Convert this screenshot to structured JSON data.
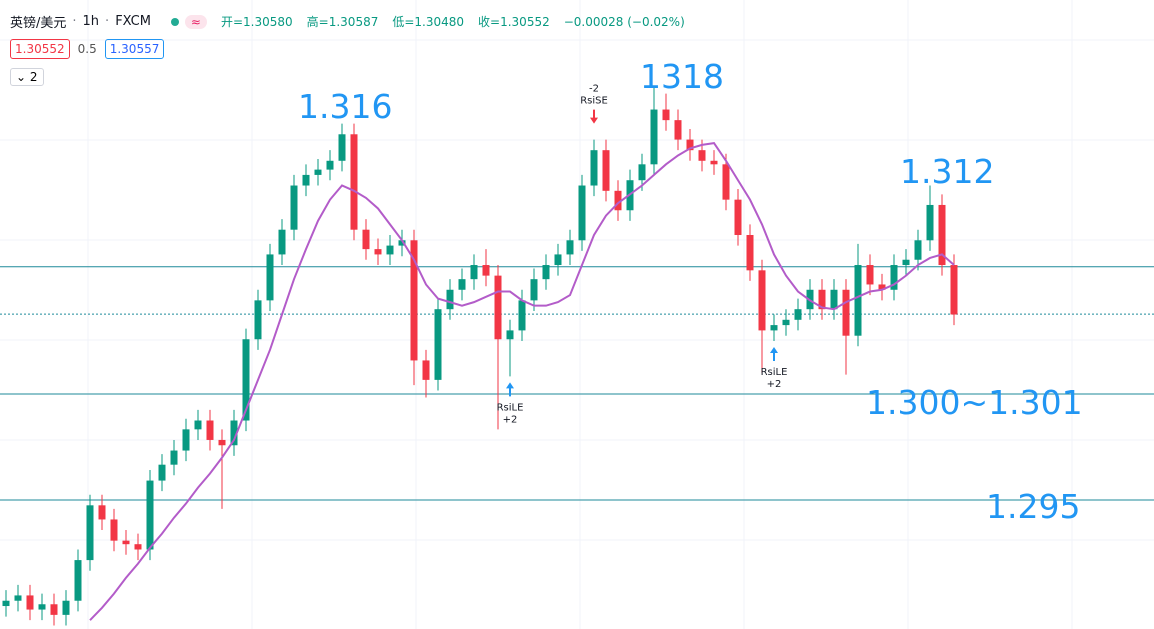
{
  "header": {
    "symbol": "英镑/美元",
    "interval": "1h",
    "source": "FXCM",
    "ohlc": [
      "开=1.30580",
      "高=1.30587",
      "低=1.30480",
      "收=1.30552"
    ],
    "change": "−0.00028 (−0.02%)",
    "sell": "1.30552",
    "spread": "0.5",
    "buy": "1.30557",
    "indicators": "2"
  },
  "chart_data": {
    "type": "candlestick",
    "up_color": "#089981",
    "down_color": "#f23645",
    "ylim": [
      1.2877,
      1.3233
    ],
    "open": [
      1.289,
      1.2893,
      1.2896,
      1.2888,
      1.2891,
      1.2885,
      1.2893,
      1.2916,
      1.2947,
      1.2939,
      1.2927,
      1.2925,
      1.2922,
      1.2961,
      1.297,
      1.2978,
      1.299,
      1.2995,
      1.2984,
      1.2981,
      1.2995,
      1.3041,
      1.3063,
      1.3089,
      1.3103,
      1.3128,
      1.3134,
      1.3137,
      1.3142,
      1.3157,
      1.3103,
      1.3092,
      1.3089,
      1.3094,
      1.3097,
      1.3029,
      1.3018,
      1.3058,
      1.3069,
      1.3075,
      1.3083,
      1.3077,
      1.3041,
      1.3046,
      1.3063,
      1.3075,
      1.3083,
      1.3089,
      1.3097,
      1.3128,
      1.3148,
      1.3125,
      1.3114,
      1.3131,
      1.314,
      1.3171,
      1.3165,
      1.3154,
      1.3148,
      1.3142,
      1.314,
      1.312,
      1.31,
      1.308,
      1.3046,
      1.3049,
      1.3052,
      1.3058,
      1.3069,
      1.3058,
      1.3069,
      1.3043,
      1.3083,
      1.3072,
      1.3069,
      1.3083,
      1.3086,
      1.3097,
      1.3117,
      1.3083
    ],
    "high": [
      1.2899,
      1.2902,
      1.2902,
      1.2897,
      1.2897,
      1.2899,
      1.2922,
      1.2953,
      1.2953,
      1.2945,
      1.2933,
      1.2931,
      1.2967,
      1.2976,
      1.2984,
      1.2996,
      1.3001,
      1.3001,
      1.299,
      1.3001,
      1.3047,
      1.3069,
      1.3095,
      1.3109,
      1.3134,
      1.314,
      1.3143,
      1.3148,
      1.3163,
      1.3163,
      1.3109,
      1.3098,
      1.31,
      1.3103,
      1.3103,
      1.3035,
      1.3064,
      1.3075,
      1.3081,
      1.3089,
      1.3092,
      1.3083,
      1.3052,
      1.3069,
      1.3081,
      1.3089,
      1.3095,
      1.3103,
      1.3134,
      1.3154,
      1.3154,
      1.3131,
      1.3137,
      1.3146,
      1.3184,
      1.318,
      1.3171,
      1.316,
      1.3154,
      1.3148,
      1.3146,
      1.3126,
      1.3106,
      1.3086,
      1.3055,
      1.3058,
      1.3064,
      1.3075,
      1.3075,
      1.3075,
      1.3075,
      1.3095,
      1.3089,
      1.3078,
      1.3089,
      1.3092,
      1.3103,
      1.3128,
      1.3123,
      1.3089
    ],
    "low": [
      1.2884,
      1.2887,
      1.2882,
      1.2882,
      1.2879,
      1.2879,
      1.2887,
      1.291,
      1.2933,
      1.2921,
      1.2919,
      1.2916,
      1.2916,
      1.2955,
      1.2964,
      1.2972,
      1.2984,
      1.2978,
      1.2945,
      1.2975,
      1.2989,
      1.3035,
      1.3057,
      1.3083,
      1.3097,
      1.3122,
      1.3128,
      1.3131,
      1.3136,
      1.3097,
      1.3086,
      1.3083,
      1.3083,
      1.3088,
      1.3015,
      1.3008,
      1.3012,
      1.3052,
      1.3063,
      1.3069,
      1.3071,
      1.299,
      1.302,
      1.304,
      1.3057,
      1.3069,
      1.3077,
      1.3083,
      1.3091,
      1.3122,
      1.3119,
      1.3108,
      1.3108,
      1.3125,
      1.3134,
      1.3159,
      1.3148,
      1.3142,
      1.3136,
      1.3134,
      1.3114,
      1.3094,
      1.3074,
      1.3022,
      1.304,
      1.3043,
      1.3046,
      1.3052,
      1.3052,
      1.3052,
      1.3021,
      1.3037,
      1.3066,
      1.3063,
      1.3063,
      1.3077,
      1.308,
      1.3091,
      1.3077,
      1.3049
    ],
    "close": [
      1.2893,
      1.2896,
      1.2888,
      1.2891,
      1.2885,
      1.2893,
      1.2916,
      1.2947,
      1.2939,
      1.2927,
      1.2925,
      1.2922,
      1.2961,
      1.297,
      1.2978,
      1.299,
      1.2995,
      1.2984,
      1.2981,
      1.2995,
      1.3041,
      1.3063,
      1.3089,
      1.3103,
      1.3128,
      1.3134,
      1.3137,
      1.3142,
      1.3157,
      1.3103,
      1.3092,
      1.3089,
      1.3094,
      1.3097,
      1.3029,
      1.3018,
      1.3058,
      1.3069,
      1.3075,
      1.3083,
      1.3077,
      1.3041,
      1.3046,
      1.3063,
      1.3075,
      1.3083,
      1.3089,
      1.3097,
      1.3128,
      1.3148,
      1.3125,
      1.3114,
      1.3131,
      1.314,
      1.3171,
      1.3165,
      1.3154,
      1.3148,
      1.3142,
      1.314,
      1.312,
      1.31,
      1.308,
      1.3046,
      1.3049,
      1.3052,
      1.3058,
      1.3069,
      1.3058,
      1.3069,
      1.3043,
      1.3083,
      1.3072,
      1.3069,
      1.3083,
      1.3086,
      1.3097,
      1.3117,
      1.3083,
      1.3055
    ],
    "ma": {
      "color": "#b35cc9",
      "values": [
        null,
        null,
        null,
        null,
        null,
        null,
        null,
        1.2882,
        1.2889,
        1.2897,
        1.2906,
        1.2914,
        1.2923,
        1.2931,
        1.294,
        1.2948,
        1.2957,
        1.2965,
        1.2974,
        1.2984,
        1.3001,
        1.3018,
        1.3035,
        1.3055,
        1.3075,
        1.3092,
        1.3108,
        1.312,
        1.3128,
        1.3125,
        1.3121,
        1.3115,
        1.3106,
        1.3097,
        1.3086,
        1.3072,
        1.3064,
        1.3062,
        1.306,
        1.3062,
        1.3065,
        1.3068,
        1.3068,
        1.3063,
        1.306,
        1.306,
        1.3062,
        1.3066,
        1.3083,
        1.31,
        1.3111,
        1.3118,
        1.3123,
        1.3128,
        1.3134,
        1.314,
        1.3145,
        1.3149,
        1.3151,
        1.3152,
        1.3142,
        1.3131,
        1.312,
        1.3106,
        1.3089,
        1.3077,
        1.3068,
        1.3063,
        1.3059,
        1.3058,
        1.3062,
        1.3065,
        1.3068,
        1.3069,
        1.3072,
        1.3077,
        1.3083,
        1.3087,
        1.3089,
        1.3083
      ]
    },
    "hlines": {
      "color": "#1e8a9a",
      "values": [
        1.3082,
        1.301,
        1.295
      ]
    },
    "price_line": 1.30552,
    "signals": [
      {
        "candle": 49,
        "qty": -2,
        "label": "RsiSE"
      },
      {
        "candle": 42,
        "qty": {
          "value": 2,
          "label": "+2"
        },
        "label": "RsiLE"
      },
      {
        "candle": 64,
        "qty": {
          "value": 2,
          "label": "+2"
        },
        "label": "RsiLE"
      }
    ],
    "annotations": [
      "1.316",
      "1318",
      "1.312",
      "1.300~1.301",
      "1.295"
    ]
  }
}
